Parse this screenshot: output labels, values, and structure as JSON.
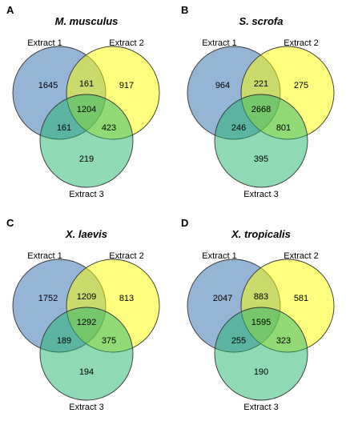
{
  "colors": {
    "extract_1": "#2b6cb0",
    "extract_2": "#ffff00",
    "extract_3": "#22b36b"
  },
  "panels": [
    {
      "letter": "A",
      "title": "M. musculus",
      "sets": [
        "Extract 1",
        "Extract 2",
        "Extract 3"
      ],
      "counts": {
        "only_1": "1645",
        "only_2": "917",
        "only_3": "219",
        "one_two": "161",
        "one_three": "161",
        "two_three": "423",
        "all": "1204"
      }
    },
    {
      "letter": "B",
      "title": "S. scrofa",
      "sets": [
        "Extract 1",
        "Extract 2",
        "Extract 3"
      ],
      "counts": {
        "only_1": "964",
        "only_2": "275",
        "only_3": "395",
        "one_two": "221",
        "one_three": "246",
        "two_three": "801",
        "all": "2668"
      }
    },
    {
      "letter": "C",
      "title": "X. laevis",
      "sets": [
        "Extract 1",
        "Extract 2",
        "Extract 3"
      ],
      "counts": {
        "only_1": "1752",
        "only_2": "813",
        "only_3": "194",
        "one_two": "1209",
        "one_three": "189",
        "two_three": "375",
        "all": "1292"
      }
    },
    {
      "letter": "D",
      "title": "X. tropicalis",
      "sets": [
        "Extract 1",
        "Extract 2",
        "Extract 3"
      ],
      "counts": {
        "only_1": "2047",
        "only_2": "581",
        "only_3": "190",
        "one_two": "883",
        "one_three": "255",
        "two_three": "323",
        "all": "1595"
      }
    }
  ]
}
